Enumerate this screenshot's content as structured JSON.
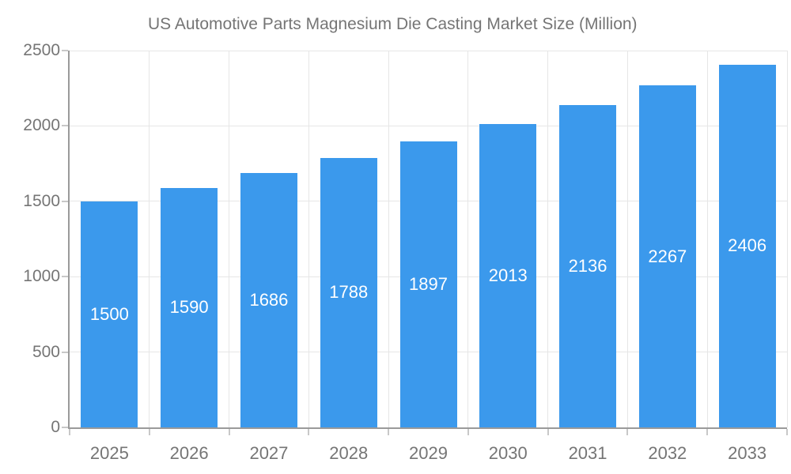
{
  "legend": {
    "label": "US Automotive Parts Magnesium Die Casting Market Size (Million)"
  },
  "chart_data": {
    "type": "bar",
    "title": "",
    "series_name": "US Automotive Parts Magnesium Die Casting Market Size (Million)",
    "categories": [
      "2025",
      "2026",
      "2027",
      "2028",
      "2029",
      "2030",
      "2031",
      "2032",
      "2033"
    ],
    "values": [
      1500,
      1590,
      1686,
      1788,
      1897,
      2013,
      2136,
      2267,
      2406
    ],
    "value_labels": [
      "1500",
      "1590",
      "1686",
      "1788",
      "1897",
      "2013",
      "2136",
      "2267",
      "2406"
    ],
    "xlabel": "",
    "ylabel": "",
    "ylim": [
      0,
      2500
    ],
    "yticks": [
      0,
      500,
      1000,
      1500,
      2000,
      2500
    ],
    "ytick_labels": [
      "0",
      "500",
      "1000",
      "1500",
      "2000",
      "2500"
    ],
    "grid": true,
    "legend_position": "top",
    "colors": {
      "bar": "#3b99ec",
      "bar_label": "#ffffff",
      "axis_line": "#9a9a9a",
      "gridline": "#e6e6e6",
      "tick_mark": "#c8c8c8",
      "tick_label": "#757575",
      "legend_text": "#757575"
    }
  }
}
